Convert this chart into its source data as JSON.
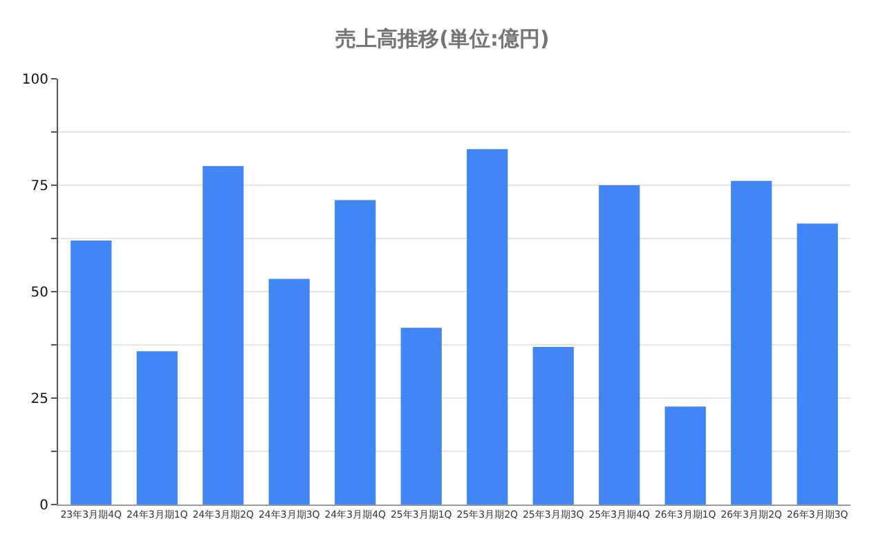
{
  "chart_data": {
    "type": "bar",
    "title": "売上高推移(単位:億円)",
    "categories": [
      "23年3月期4Q",
      "24年3月期1Q",
      "24年3月期2Q",
      "24年3月期3Q",
      "24年3月期4Q",
      "25年3月期1Q",
      "25年3月期2Q",
      "25年3月期3Q",
      "25年3月期4Q",
      "26年3月期1Q",
      "26年3月期2Q",
      "26年3月期3Q"
    ],
    "values": [
      62,
      36,
      79.5,
      53,
      71.5,
      41.5,
      83.5,
      37,
      75,
      23,
      76,
      66
    ],
    "color": "#4285f4",
    "ylim": [
      0,
      100
    ],
    "yticks": [
      0,
      {
        "value": 12.5,
        "label": null
      },
      25,
      {
        "value": 37.5,
        "label": null
      },
      50,
      {
        "value": 62.5,
        "label": null
      },
      75,
      {
        "value": 87.5,
        "label": null
      },
      100
    ],
    "grid": "y"
  }
}
